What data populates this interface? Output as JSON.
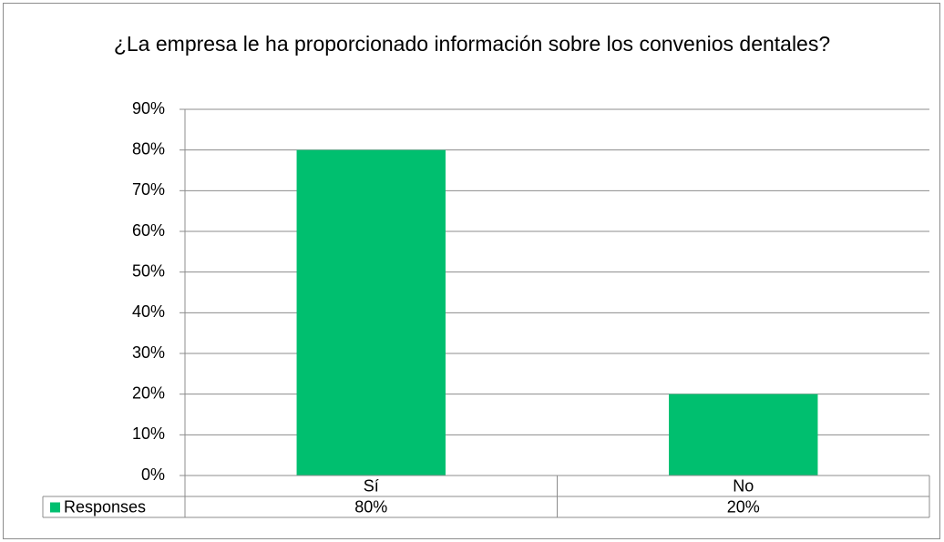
{
  "chart_data": {
    "type": "bar",
    "title": "¿La empresa le ha proporcionado información sobre los convenios dentales?",
    "categories": [
      "Sí",
      "No"
    ],
    "series": [
      {
        "name": "Responses",
        "color": "#00bf6f",
        "values": [
          80,
          20
        ],
        "value_labels": [
          "80%",
          "20%"
        ]
      }
    ],
    "ylim": [
      0,
      90
    ],
    "yticks": [
      {
        "value": 0,
        "label": "0%"
      },
      {
        "value": 10,
        "label": "10%"
      },
      {
        "value": 20,
        "label": "20%"
      },
      {
        "value": 30,
        "label": "30%"
      },
      {
        "value": 40,
        "label": "40%"
      },
      {
        "value": 50,
        "label": "50%"
      },
      {
        "value": 60,
        "label": "60%"
      },
      {
        "value": 70,
        "label": "70%"
      },
      {
        "value": 80,
        "label": "80%"
      },
      {
        "value": 90,
        "label": "90%"
      }
    ],
    "grid": true,
    "data_table": true
  }
}
